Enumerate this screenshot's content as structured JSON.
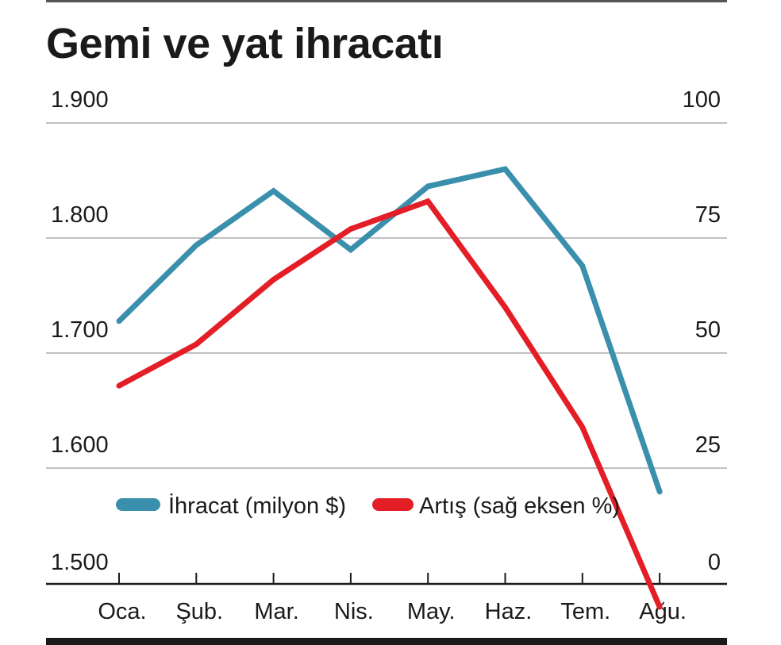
{
  "chart_data": {
    "type": "line",
    "title": "Gemi ve yat ihracatı",
    "categories": [
      "Oca.",
      "Şub.",
      "Mar.",
      "Nis.",
      "May.",
      "Haz.",
      "Tem.",
      "Ağu."
    ],
    "y_left": {
      "ticks": [
        "1.900",
        "1.800",
        "1.700",
        "1.600",
        "1.500"
      ],
      "ylim": [
        1500,
        1900
      ]
    },
    "y_right": {
      "ticks": [
        "100",
        "75",
        "50",
        "25",
        "0"
      ],
      "ylim": [
        0,
        100
      ]
    },
    "grid": true,
    "legend_position": "bottom-left",
    "series": [
      {
        "name": "İhracat (milyon $)",
        "axis": "left",
        "color": "#3a8fac",
        "values": [
          1728,
          1794,
          1841,
          1790,
          1845,
          1860,
          1776,
          1580
        ]
      },
      {
        "name": "Artış (sağ eksen %)",
        "axis": "right",
        "color": "#e31e26",
        "values": [
          43,
          52,
          66,
          77,
          83,
          60,
          34,
          -5
        ]
      }
    ]
  }
}
